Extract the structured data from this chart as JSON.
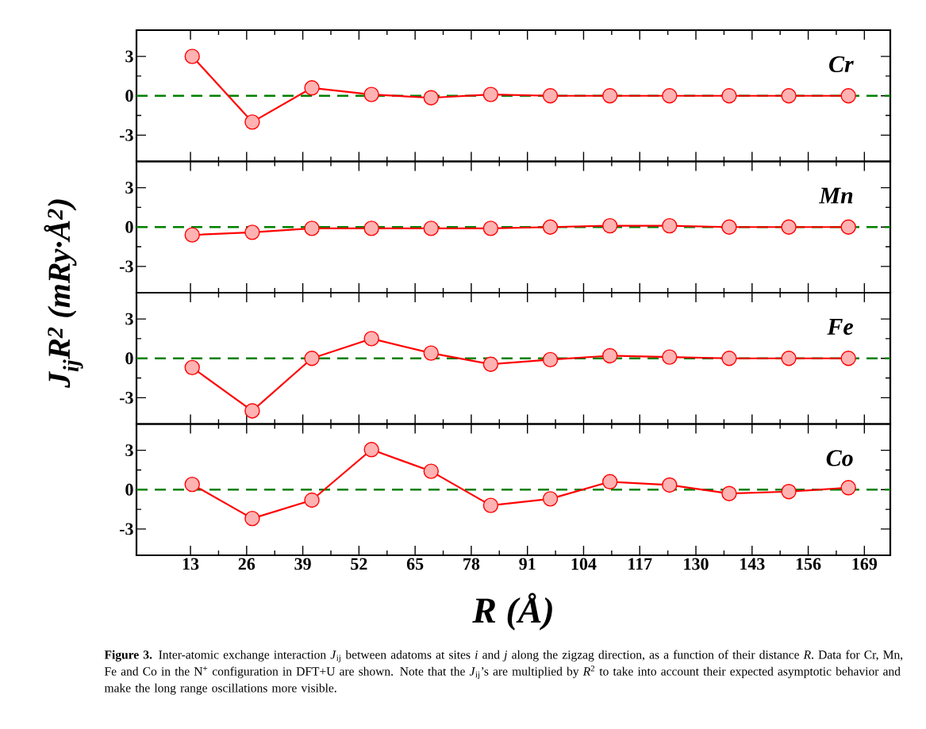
{
  "chart_data": [
    {
      "type": "line",
      "annotations": [
        "Cr"
      ],
      "ylabel": "J$_{ij}$R$^{2}$ (mRy·Å$^{2}$)",
      "x": [
        13.4,
        27.3,
        41.1,
        54.9,
        68.7,
        82.5,
        96.3,
        110.1,
        123.9,
        137.7,
        151.5,
        165.3
      ],
      "values": [
        3.0,
        -2.0,
        0.6,
        0.1,
        -0.15,
        0.1,
        0,
        0,
        0,
        0,
        0,
        0
      ],
      "color": "#ff0000",
      "marker": "circle",
      "line_style": "solid",
      "xlim": [
        0.5,
        175
      ],
      "ylim": [
        -5,
        5
      ],
      "xticks": [
        13,
        26,
        39,
        52,
        65,
        78,
        91,
        104,
        117,
        130,
        143,
        156,
        169
      ],
      "yticks": [
        -3,
        0,
        3
      ],
      "tick_labels": "y",
      "ref_lines": [
        {
          "axis": "y",
          "value": 0,
          "color": "#008000",
          "line_style": "dashed"
        }
      ]
    },
    {
      "type": "line",
      "annotations": [
        "Mn"
      ],
      "x": [
        13.4,
        27.3,
        41.1,
        54.9,
        68.7,
        82.5,
        96.3,
        110.1,
        123.9,
        137.7,
        151.5,
        165.3
      ],
      "values": [
        -0.6,
        -0.4,
        -0.1,
        -0.1,
        -0.1,
        -0.1,
        0,
        0.1,
        0.1,
        0,
        0,
        0
      ],
      "color": "#ff0000",
      "marker": "circle",
      "line_style": "solid",
      "xlim": [
        0.5,
        175
      ],
      "ylim": [
        -5,
        5
      ],
      "xticks": [
        13,
        26,
        39,
        52,
        65,
        78,
        91,
        104,
        117,
        130,
        143,
        156,
        169
      ],
      "yticks": [
        -3,
        0,
        3
      ],
      "tick_labels": "y",
      "ref_lines": [
        {
          "axis": "y",
          "value": 0,
          "color": "#008000",
          "line_style": "dashed"
        }
      ]
    },
    {
      "type": "line",
      "annotations": [
        "Fe"
      ],
      "x": [
        13.4,
        27.3,
        41.1,
        54.9,
        68.7,
        82.5,
        96.3,
        110.1,
        123.9,
        137.7,
        151.5,
        165.3
      ],
      "values": [
        -0.7,
        -4.0,
        0,
        1.5,
        0.4,
        -0.45,
        -0.1,
        0.2,
        0.1,
        0,
        0,
        0
      ],
      "color": "#ff0000",
      "marker": "circle",
      "line_style": "solid",
      "xlim": [
        0.5,
        175
      ],
      "ylim": [
        -5,
        5
      ],
      "xticks": [
        13,
        26,
        39,
        52,
        65,
        78,
        91,
        104,
        117,
        130,
        143,
        156,
        169
      ],
      "yticks": [
        -3,
        0,
        3
      ],
      "tick_labels": "y",
      "ref_lines": [
        {
          "axis": "y",
          "value": 0,
          "color": "#008000",
          "line_style": "dashed"
        }
      ]
    },
    {
      "type": "line",
      "annotations": [
        "Co",
        "**Figure 3.** Inter-atomic exchange interaction *J*$_{ij}$ between adatoms at sites *i* and *j* along the zigzag direction, as a function of their distance *R*. Data for Cr, Mn, Fe and Co in the N$^{+}$ configuration in DFT+U are shown. Note that the *J*$_{ij}$’s are multiplied by *R*$^{2}$ to take into account their expected asymptotic behavior and make the long range oscillations more visible."
      ],
      "xlabel": "R (Å)",
      "x": [
        13.4,
        27.3,
        41.1,
        54.9,
        68.7,
        82.5,
        96.3,
        110.1,
        123.9,
        137.7,
        151.5,
        165.3
      ],
      "values": [
        0.4,
        -2.2,
        -0.8,
        3.05,
        1.4,
        -1.2,
        -0.7,
        0.6,
        0.35,
        -0.3,
        -0.15,
        0.15
      ],
      "color": "#ff0000",
      "marker": "circle",
      "line_style": "solid",
      "xlim": [
        0.5,
        175
      ],
      "ylim": [
        -5,
        5
      ],
      "xticks": [
        13,
        26,
        39,
        52,
        65,
        78,
        91,
        104,
        117,
        130,
        143,
        156,
        169
      ],
      "yticks": [
        -3,
        0,
        3
      ],
      "ref_lines": [
        {
          "axis": "y",
          "value": 0,
          "color": "#008000",
          "line_style": "dashed"
        }
      ]
    }
  ]
}
